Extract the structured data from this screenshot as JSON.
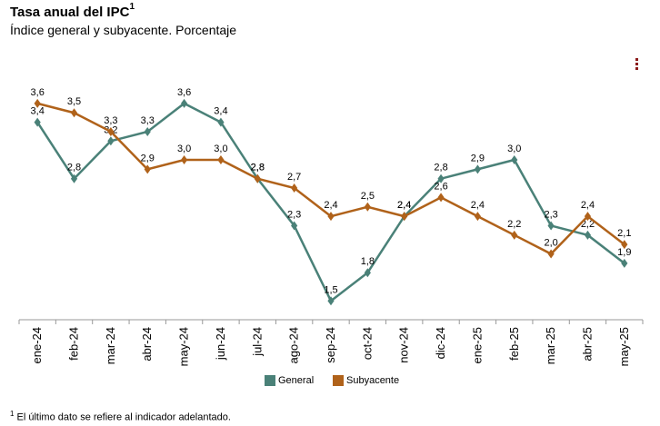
{
  "chart_data": {
    "type": "line",
    "title": "Tasa anual del IPC",
    "title_sup": "1",
    "subtitle": "Índice general y subyacente. Porcentaje",
    "categories": [
      "ene-24",
      "feb-24",
      "mar-24",
      "abr-24",
      "may-24",
      "jun-24",
      "jul-24",
      "ago-24",
      "sep-24",
      "oct-24",
      "nov-24",
      "dic-24",
      "ene-25",
      "feb-25",
      "mar-25",
      "abr-25",
      "may-25"
    ],
    "series": [
      {
        "name": "General",
        "color": "#4a8178",
        "values": [
          3.4,
          2.8,
          3.2,
          3.3,
          3.6,
          3.4,
          2.8,
          2.3,
          1.5,
          1.8,
          2.4,
          2.8,
          2.9,
          3.0,
          2.3,
          2.2,
          1.9
        ],
        "labels": [
          "3,4",
          "2,8",
          "3,2",
          "3,3",
          "3,6",
          "3,4",
          "2,8",
          "2,3",
          "1,5",
          "1,8",
          "2,4",
          "2,8",
          "2,9",
          "3,0",
          "2,3",
          "2,2",
          "1,9"
        ]
      },
      {
        "name": "Subyacente",
        "color": "#b0621a",
        "values": [
          3.6,
          3.5,
          3.3,
          2.9,
          3.0,
          3.0,
          2.8,
          2.7,
          2.4,
          2.5,
          2.4,
          2.6,
          2.4,
          2.2,
          2.0,
          2.4,
          2.1
        ],
        "labels": [
          "3,6",
          "3,5",
          "3,3",
          "2,9",
          "3,0",
          "3,0",
          "2,8",
          "2,7",
          "2,4",
          "2,5",
          "2,4",
          "2,6",
          "2,4",
          "2,2",
          "2,0",
          "2,4",
          "2,1"
        ]
      }
    ],
    "ylim": [
      1.3,
      3.85
    ],
    "xlabel": "",
    "ylabel": "",
    "legend_position": "bottom-center"
  },
  "footnote": {
    "sup": "1",
    "text": "El último dato se refiere al indicador adelantado."
  },
  "icons": {
    "menu": "menu-dots-icon"
  }
}
